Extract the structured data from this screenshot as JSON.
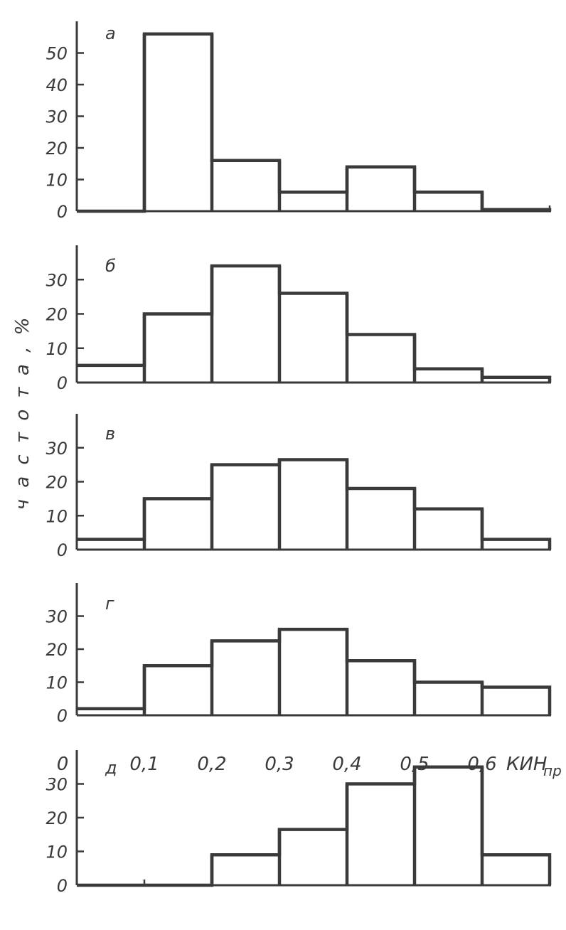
{
  "chart_data": [
    {
      "type": "bar",
      "panel_label": "а",
      "bin_edges": [
        0,
        0.1,
        0.2,
        0.3,
        0.4,
        0.5,
        0.6,
        0.7
      ],
      "values": [
        0,
        56,
        16,
        6,
        14,
        6,
        0.5
      ],
      "yticks": [
        "0",
        "10",
        "20",
        "30",
        "40",
        "50"
      ],
      "ylim": [
        0,
        60
      ]
    },
    {
      "type": "bar",
      "panel_label": "б",
      "bin_edges": [
        0,
        0.1,
        0.2,
        0.3,
        0.4,
        0.5,
        0.6,
        0.7
      ],
      "values": [
        5,
        20,
        34,
        26,
        14,
        4,
        1.5
      ],
      "yticks": [
        "0",
        "10",
        "20",
        "30"
      ],
      "ylim": [
        0,
        40
      ]
    },
    {
      "type": "bar",
      "panel_label": "в",
      "bin_edges": [
        0,
        0.1,
        0.2,
        0.3,
        0.4,
        0.5,
        0.6,
        0.7
      ],
      "values": [
        3,
        15,
        25,
        26.5,
        18,
        12,
        3
      ],
      "yticks": [
        "0",
        "10",
        "20",
        "30"
      ],
      "ylim": [
        0,
        40
      ]
    },
    {
      "type": "bar",
      "panel_label": "г",
      "bin_edges": [
        0,
        0.1,
        0.2,
        0.3,
        0.4,
        0.5,
        0.6,
        0.7
      ],
      "values": [
        2,
        15,
        22.5,
        26,
        16.5,
        10,
        8.5
      ],
      "yticks": [
        "0",
        "10",
        "20",
        "30"
      ],
      "ylim": [
        0,
        40
      ]
    },
    {
      "type": "bar",
      "panel_label": "д",
      "bin_edges": [
        0,
        0.1,
        0.2,
        0.3,
        0.4,
        0.5,
        0.6,
        0.7
      ],
      "values": [
        0,
        0,
        9,
        16.5,
        30,
        35,
        9
      ],
      "yticks": [
        "0",
        "10",
        "20",
        "30"
      ],
      "ylim": [
        0,
        40
      ]
    }
  ],
  "shared_ylabel": "ч а с т о т а , %",
  "x_tick_labels": [
    "0",
    "0,1",
    "0,2",
    "0,3",
    "0,4",
    "0,5",
    "0,6"
  ],
  "x_axis_label": "КИН",
  "x_axis_label_sub": "пр",
  "colors": {
    "ink": "#3a3a3a",
    "background": "#ffffff"
  }
}
